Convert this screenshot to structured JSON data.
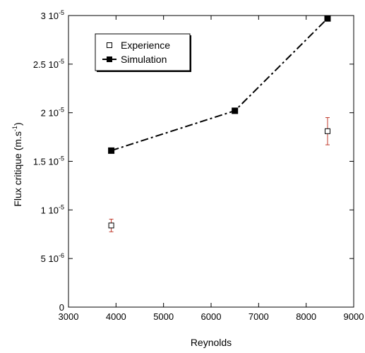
{
  "chart_data": {
    "type": "line",
    "xlabel": "Reynolds",
    "ylabel_text": "Flux critique (m.s",
    "ylabel_sup": "-1",
    "ylabel_close": ")",
    "xlim": [
      3000,
      9000
    ],
    "ylim": [
      0,
      3e-05
    ],
    "grid": false,
    "legend_position": "top-left",
    "x_ticks": [
      {
        "value": 3000,
        "label": "3000"
      },
      {
        "value": 4000,
        "label": "4000"
      },
      {
        "value": 5000,
        "label": "5000"
      },
      {
        "value": 6000,
        "label": "6000"
      },
      {
        "value": 7000,
        "label": "7000"
      },
      {
        "value": 8000,
        "label": "8000"
      },
      {
        "value": 9000,
        "label": "9000"
      }
    ],
    "y_ticks": [
      {
        "value": 0,
        "mantissa": "0",
        "exp": ""
      },
      {
        "value": 5e-06,
        "mantissa": "5 10",
        "exp": "-6"
      },
      {
        "value": 1e-05,
        "mantissa": "1 10",
        "exp": "-5"
      },
      {
        "value": 1.5e-05,
        "mantissa": "1.5 10",
        "exp": "-5"
      },
      {
        "value": 2e-05,
        "mantissa": "2 10",
        "exp": "-5"
      },
      {
        "value": 2.5e-05,
        "mantissa": "2.5 10",
        "exp": "-5"
      },
      {
        "value": 3e-05,
        "mantissa": "3 10",
        "exp": "-5"
      }
    ],
    "series": [
      {
        "name": "Experience",
        "marker": "open-square",
        "line": "none",
        "color": "#000000",
        "error_color": "#c0392b",
        "points": [
          {
            "x": 3900,
            "y": 8.4e-06,
            "err": 6.5e-07
          },
          {
            "x": 8450,
            "y": 1.81e-05,
            "err": 1.4e-06
          }
        ]
      },
      {
        "name": "Simulation",
        "marker": "filled-square",
        "line": "dash-dot",
        "color": "#000000",
        "points": [
          {
            "x": 3900,
            "y": 1.61e-05
          },
          {
            "x": 6500,
            "y": 2.02e-05
          },
          {
            "x": 8450,
            "y": 2.97e-05
          }
        ]
      }
    ]
  }
}
